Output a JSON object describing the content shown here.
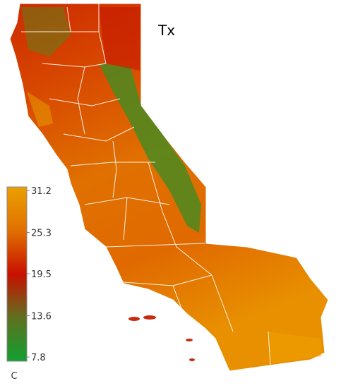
{
  "title": "Tx",
  "colorbar": {
    "lim": [
      7.8,
      31.2
    ],
    "ticks": [
      31.2,
      25.3,
      19.5,
      13.6,
      7.8
    ],
    "unit": "C"
  }
}
